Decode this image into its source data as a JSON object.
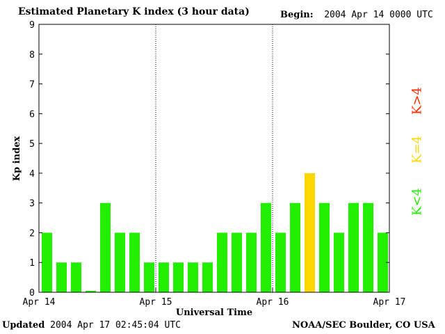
{
  "header": {
    "title": "Estimated Planetary K index (3 hour data)",
    "begin_label": "Begin:",
    "begin_value": "2004 Apr 14 0000 UTC"
  },
  "footer": {
    "updated_label": "Updated",
    "updated_value": "2004 Apr 17 02:45:04 UTC",
    "credit": "NOAA/SEC Boulder, CO USA"
  },
  "legend": [
    {
      "label": "K>4",
      "color": "#ff2a00"
    },
    {
      "label": "K=4",
      "color": "#ffd700"
    },
    {
      "label": "K<4",
      "color": "#22ee00"
    }
  ],
  "chart_data": {
    "type": "bar",
    "ylabel": "Kp index",
    "xlabel": "Universal Time",
    "ylim": [
      0,
      9
    ],
    "yticks": [
      "0",
      "1",
      "2",
      "3",
      "4",
      "5",
      "6",
      "7",
      "8",
      "9"
    ],
    "xtick_labels": [
      "Apr 14",
      "Apr 15",
      "Apr 16",
      "Apr 17"
    ],
    "values": [
      2,
      1,
      1,
      0.05,
      3,
      2,
      2,
      1,
      1,
      1,
      1,
      1,
      2,
      2,
      2,
      3,
      2,
      3,
      4,
      3,
      2,
      3,
      3,
      2
    ],
    "colors": {
      "below": "#22ee00",
      "equal": "#ffd700",
      "above": "#ff2a00"
    }
  }
}
